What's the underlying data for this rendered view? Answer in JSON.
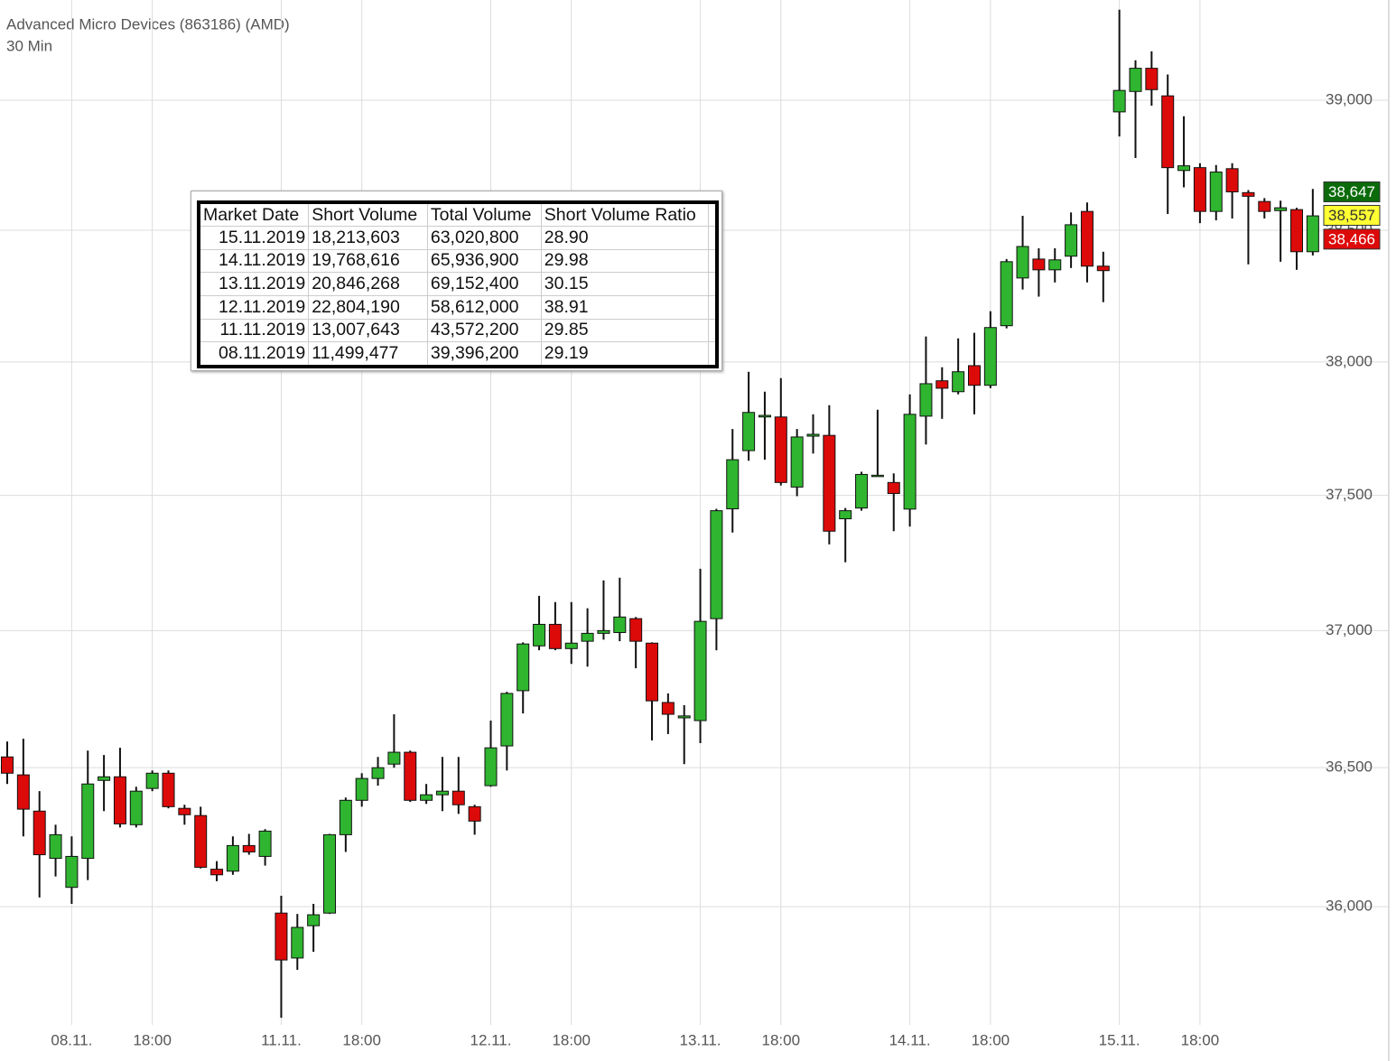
{
  "chart_data": {
    "type": "candlestick",
    "title": "Advanced Micro Devices (863186) (AMD)",
    "subtitle": "30 Min",
    "log_scale": true,
    "grid": true,
    "up_color": "#2fb52f",
    "down_color": "#dd0a0a",
    "categories": [
      null,
      null,
      null,
      null,
      "08.11.",
      null,
      null,
      null,
      null,
      "18:00",
      null,
      null,
      null,
      null,
      null,
      null,
      null,
      "11.11.",
      null,
      null,
      null,
      null,
      "18:00",
      null,
      null,
      null,
      null,
      null,
      null,
      null,
      "12.11.",
      null,
      null,
      null,
      null,
      "18:00",
      null,
      null,
      null,
      null,
      null,
      null,
      null,
      "13.11.",
      null,
      null,
      null,
      null,
      "18:00",
      null,
      null,
      null,
      null,
      null,
      null,
      null,
      "14.11.",
      null,
      null,
      null,
      null,
      "18:00",
      null,
      null,
      null,
      null,
      null,
      null,
      null,
      "15.11.",
      null,
      null,
      null,
      null,
      "18:00",
      null,
      null,
      null,
      null,
      null,
      null,
      null
    ],
    "open": [
      36.539,
      36.474,
      36.343,
      36.173,
      36.069,
      36.173,
      36.454,
      36.467,
      36.294,
      36.425,
      36.48,
      36.353,
      36.327,
      36.134,
      36.127,
      36.219,
      36.18,
      35.977,
      35.817,
      35.932,
      35.977,
      36.258,
      36.382,
      36.461,
      36.513,
      36.556,
      36.382,
      36.402,
      36.415,
      36.359,
      36.435,
      36.579,
      36.78,
      36.944,
      37.023,
      36.934,
      36.961,
      36.99,
      36.993,
      37.044,
      36.954,
      36.737,
      36.681,
      36.671,
      37.044,
      37.45,
      37.667,
      37.793,
      37.793,
      37.531,
      37.721,
      37.724,
      37.413,
      37.453,
      37.571,
      37.548,
      37.449,
      37.796,
      37.929,
      37.888,
      37.986,
      37.912,
      38.137,
      38.318,
      38.39,
      38.349,
      38.401,
      38.572,
      38.363,
      38.955,
      39.034,
      39.124,
      39.017,
      38.729,
      38.74,
      38.572,
      38.736,
      38.644,
      38.61,
      38.575,
      38.579,
      38.418
    ],
    "high": [
      36.595,
      36.605,
      36.415,
      36.294,
      36.252,
      36.562,
      36.546,
      36.572,
      36.431,
      36.49,
      36.49,
      36.366,
      36.359,
      36.163,
      36.252,
      36.261,
      36.278,
      36.039,
      35.974,
      36.01,
      36.261,
      36.392,
      36.48,
      36.539,
      36.694,
      36.562,
      36.441,
      36.539,
      36.539,
      36.366,
      36.671,
      36.776,
      36.957,
      37.128,
      37.105,
      37.105,
      37.082,
      37.185,
      37.195,
      37.05,
      36.957,
      36.77,
      36.727,
      37.228,
      37.45,
      37.748,
      37.963,
      37.888,
      37.939,
      37.748,
      37.803,
      37.837,
      37.453,
      37.588,
      37.82,
      37.582,
      37.878,
      38.096,
      37.98,
      38.089,
      38.11,
      38.192,
      38.39,
      38.555,
      38.431,
      38.431,
      38.568,
      38.606,
      38.418,
      39.352,
      39.155,
      39.19,
      39.1,
      38.938,
      38.757,
      38.75,
      38.757,
      38.654,
      38.623,
      38.613,
      38.586,
      38.658
    ],
    "low": [
      36.441,
      36.252,
      36.033,
      36.108,
      36.01,
      36.095,
      36.343,
      36.284,
      36.284,
      36.415,
      36.353,
      36.294,
      36.137,
      36.091,
      36.114,
      36.186,
      36.147,
      35.605,
      35.775,
      35.839,
      35.974,
      36.196,
      36.359,
      36.435,
      36.5,
      36.376,
      36.369,
      36.343,
      36.333,
      36.258,
      36.431,
      36.49,
      36.697,
      36.928,
      36.928,
      36.878,
      36.868,
      36.967,
      36.961,
      36.862,
      36.599,
      36.622,
      36.513,
      36.589,
      36.928,
      37.362,
      37.629,
      37.633,
      37.537,
      37.497,
      37.656,
      37.318,
      37.252,
      37.443,
      37.571,
      37.367,
      37.384,
      37.69,
      37.786,
      37.878,
      37.803,
      37.901,
      38.127,
      38.274,
      38.247,
      38.301,
      38.356,
      38.301,
      38.226,
      38.86,
      38.777,
      38.979,
      38.562,
      38.664,
      38.527,
      38.538,
      38.545,
      38.37,
      38.545,
      38.38,
      38.349,
      38.404
    ],
    "close": [
      36.48,
      36.35,
      36.186,
      36.258,
      36.18,
      36.441,
      36.467,
      36.297,
      36.415,
      36.48,
      36.359,
      36.33,
      36.141,
      36.114,
      36.219,
      36.196,
      36.271,
      35.81,
      35.926,
      35.971,
      36.258,
      36.382,
      36.461,
      36.5,
      36.556,
      36.382,
      36.402,
      36.415,
      36.366,
      36.307,
      36.572,
      36.77,
      36.951,
      37.023,
      36.934,
      36.954,
      36.99,
      37.0,
      37.05,
      36.961,
      36.743,
      36.694,
      36.688,
      37.034,
      37.443,
      37.633,
      37.81,
      37.799,
      37.548,
      37.718,
      37.728,
      37.367,
      37.443,
      37.578,
      37.575,
      37.507,
      37.803,
      37.918,
      37.901,
      37.963,
      37.912,
      38.13,
      38.38,
      38.438,
      38.349,
      38.387,
      38.521,
      38.363,
      38.346,
      39.038,
      39.124,
      39.041,
      38.74,
      38.747,
      38.572,
      38.723,
      38.647,
      38.63,
      38.572,
      38.586,
      38.418,
      38.555
    ],
    "ylim": [
      35.58,
      39.39
    ],
    "yticks": [
      {
        "value": 36,
        "label": "36,000"
      },
      {
        "value": 36.5,
        "label": "36,500"
      },
      {
        "value": 37,
        "label": "37,000"
      },
      {
        "value": 37.5,
        "label": "37,500"
      },
      {
        "value": 38,
        "label": "38,000"
      },
      {
        "value": 38.5,
        "label": "38,500"
      },
      {
        "value": 39,
        "label": "39,000"
      }
    ],
    "price_markers": [
      {
        "value": 38.647,
        "label": "38,647",
        "color": "#0b6b0b",
        "text_color": "#ffffff"
      },
      {
        "value": 38.557,
        "label": "38,557",
        "color": "#ffff33",
        "text_color": "#333333"
      },
      {
        "value": 38.466,
        "label": "38,466",
        "color": "#dd0a0a",
        "text_color": "#ffffff"
      }
    ]
  },
  "table": {
    "columns": [
      "Market Date",
      "Short Volume",
      "Total Volume",
      "Short Volume Ratio"
    ],
    "rows": [
      [
        "15.11.2019",
        "18,213,603",
        "63,020,800",
        "28.90"
      ],
      [
        "14.11.2019",
        "19,768,616",
        "65,936,900",
        "29.98"
      ],
      [
        "13.11.2019",
        "20,846,268",
        "69,152,400",
        "30.15"
      ],
      [
        "12.11.2019",
        "22,804,190",
        "58,612,000",
        "38.91"
      ],
      [
        "11.11.2019",
        "13,007,643",
        "43,572,200",
        "29.85"
      ],
      [
        "08.11.2019",
        "11,499,477",
        "39,396,200",
        "29.19"
      ]
    ]
  }
}
